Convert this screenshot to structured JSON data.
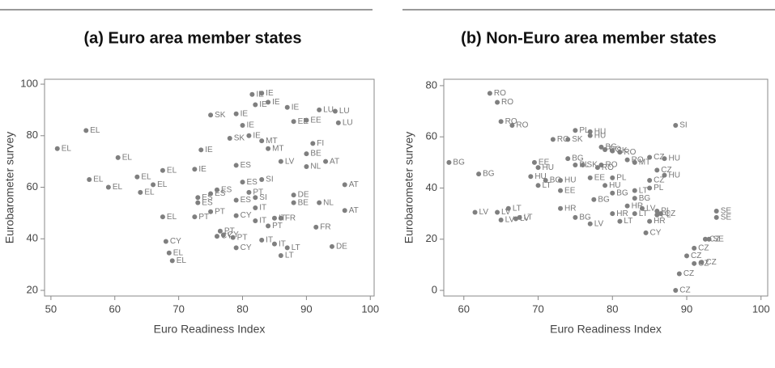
{
  "chart_data": [
    {
      "type": "scatter",
      "title": "(a) Euro area member states",
      "xlabel": "Euro Readiness Index",
      "ylabel": "Eurobarometer survey",
      "xlim": [
        49,
        100.6
      ],
      "ylim": [
        17.8,
        101.9
      ],
      "xticks": [
        50,
        60,
        70,
        80,
        90,
        100
      ],
      "yticks": [
        20,
        40,
        60,
        80,
        100
      ],
      "color": "#7f7f7f",
      "x": [
        51,
        55.5,
        56,
        59,
        60.5,
        63.5,
        64,
        66,
        67.5,
        67.5,
        68,
        68.5,
        69,
        72.5,
        73.5,
        73,
        73,
        72.5,
        75,
        75,
        76,
        75,
        76,
        76.5,
        77,
        78.5,
        79,
        78,
        79,
        79,
        80,
        81,
        81.5,
        82,
        83,
        84,
        87,
        83,
        84,
        80,
        81,
        82,
        82,
        82,
        83,
        85,
        86,
        87,
        86,
        88,
        88,
        92,
        94.5,
        95,
        92,
        91.5,
        96,
        96,
        94,
        90,
        90,
        90,
        93,
        88,
        85,
        83,
        91,
        86,
        79,
        79,
        84
      ],
      "values": [
        75,
        82,
        63,
        60,
        71.5,
        64,
        58,
        61,
        66.5,
        48.5,
        39,
        34.5,
        31.5,
        67,
        74.5,
        56,
        54,
        48.5,
        57.5,
        88,
        59,
        50.5,
        41,
        43,
        41.5,
        40.5,
        36.5,
        79,
        68.5,
        88.5,
        84,
        80,
        96,
        92,
        96.5,
        93,
        91,
        78,
        75,
        62,
        58,
        56,
        52,
        47,
        39.5,
        38,
        33.5,
        36.5,
        48,
        54,
        85.5,
        90,
        89.5,
        85,
        54,
        44.5,
        61,
        51,
        37,
        86,
        73,
        68,
        70,
        57,
        48,
        63,
        77,
        70,
        49,
        55,
        45
      ],
      "labels": [
        "EL",
        "EL",
        "EL",
        "EL",
        "EL",
        "EL",
        "EL",
        "EL",
        "EL",
        "EL",
        "CY",
        "EL",
        "EL",
        "IE",
        "IE",
        "ES",
        "ES",
        "PT",
        "ES",
        "SK",
        "ES",
        "PT",
        "CY",
        "PT",
        "CY",
        "PT",
        "CY",
        "SK",
        "ES",
        "IE",
        "IE",
        "IE",
        "IE",
        "IE",
        "IE",
        "IE",
        "IE",
        "MT",
        "MT",
        "ES",
        "PT",
        "SI",
        "IT",
        "IT",
        "IT",
        "IT",
        "LT",
        "LT",
        "FR",
        "BE",
        "EE",
        "LU",
        "LU",
        "LU",
        "NL",
        "FR",
        "AT",
        "AT",
        "DE",
        "EE",
        "BE",
        "NL",
        "AT",
        "DE",
        "IT",
        "SI",
        "FI",
        "LV",
        "CY",
        "ES",
        "PT"
      ]
    },
    {
      "type": "scatter",
      "title": "(b) Non-Euro area member states",
      "xlabel": "Euro Readiness Index",
      "ylabel": "Eurobarometer survey",
      "xlim": [
        57.3,
        100.9
      ],
      "ylim": [
        -2.2,
        82.5
      ],
      "xticks": [
        60,
        70,
        80,
        90,
        100
      ],
      "yticks": [
        0,
        20,
        40,
        60,
        80
      ],
      "color": "#7f7f7f",
      "x": [
        63.5,
        64.5,
        65,
        66.5,
        58,
        62,
        61.5,
        64.5,
        65,
        66,
        67.5,
        67,
        69,
        69.5,
        70,
        70,
        71,
        73,
        73,
        72,
        74,
        75,
        77,
        77,
        74,
        75,
        76,
        78.5,
        79,
        78.5,
        80,
        81,
        82,
        83,
        85,
        87,
        86,
        87,
        85,
        85,
        83,
        83,
        82,
        77.5,
        75,
        77,
        73,
        81,
        85,
        86,
        86.5,
        84,
        84.5,
        88.5,
        94,
        94,
        88.5,
        89,
        90,
        91,
        92,
        91,
        92.5,
        93,
        77,
        80,
        78,
        79,
        80,
        86,
        83,
        80
      ],
      "values": [
        77,
        73.5,
        66,
        64.5,
        50,
        45.5,
        30.5,
        30.5,
        27.5,
        32,
        28.5,
        28,
        44.5,
        50,
        48,
        41,
        43,
        43,
        39,
        59,
        59,
        62.5,
        62,
        60.5,
        51.5,
        49,
        49,
        49,
        55,
        56,
        54.5,
        54,
        51,
        50,
        52,
        51.5,
        47,
        45,
        43,
        40,
        39,
        36,
        33,
        35.5,
        28.5,
        26,
        32,
        27,
        27,
        29.5,
        30,
        32,
        22.5,
        64.5,
        31,
        28.5,
        0,
        6.5,
        13.5,
        10.5,
        11,
        16.5,
        20,
        20,
        44,
        44,
        48,
        41,
        38,
        31,
        30,
        30
      ],
      "labels": [
        "RO",
        "RO",
        "RO",
        "RO",
        "BG",
        "BG",
        "LV",
        "LV",
        "LV",
        "LT",
        "LT",
        "LV",
        "HU",
        "EE",
        "HU",
        "LT",
        "BG",
        "HU",
        "EE",
        "RO",
        "SK",
        "PL",
        "HU",
        "HU",
        "BG",
        "PL",
        "SK",
        "RO",
        "RO",
        "BG",
        "SK",
        "RO",
        "RO",
        "MT",
        "CZ",
        "HU",
        "CZ",
        "HU",
        "CZ",
        "PL",
        "LT",
        "BG",
        "HR",
        "BG",
        "BG",
        "LV",
        "HR",
        "LT",
        "HR",
        "PL",
        "CZ",
        "LV",
        "CY",
        "SI",
        "SE",
        "SE",
        "CZ",
        "CZ",
        "CZ",
        "CZ",
        "CZ",
        "CZ",
        "CZ",
        "SE",
        "EE",
        "PL",
        "RO",
        "HU",
        "BG",
        "PL",
        "LT",
        "HR"
      ]
    }
  ]
}
